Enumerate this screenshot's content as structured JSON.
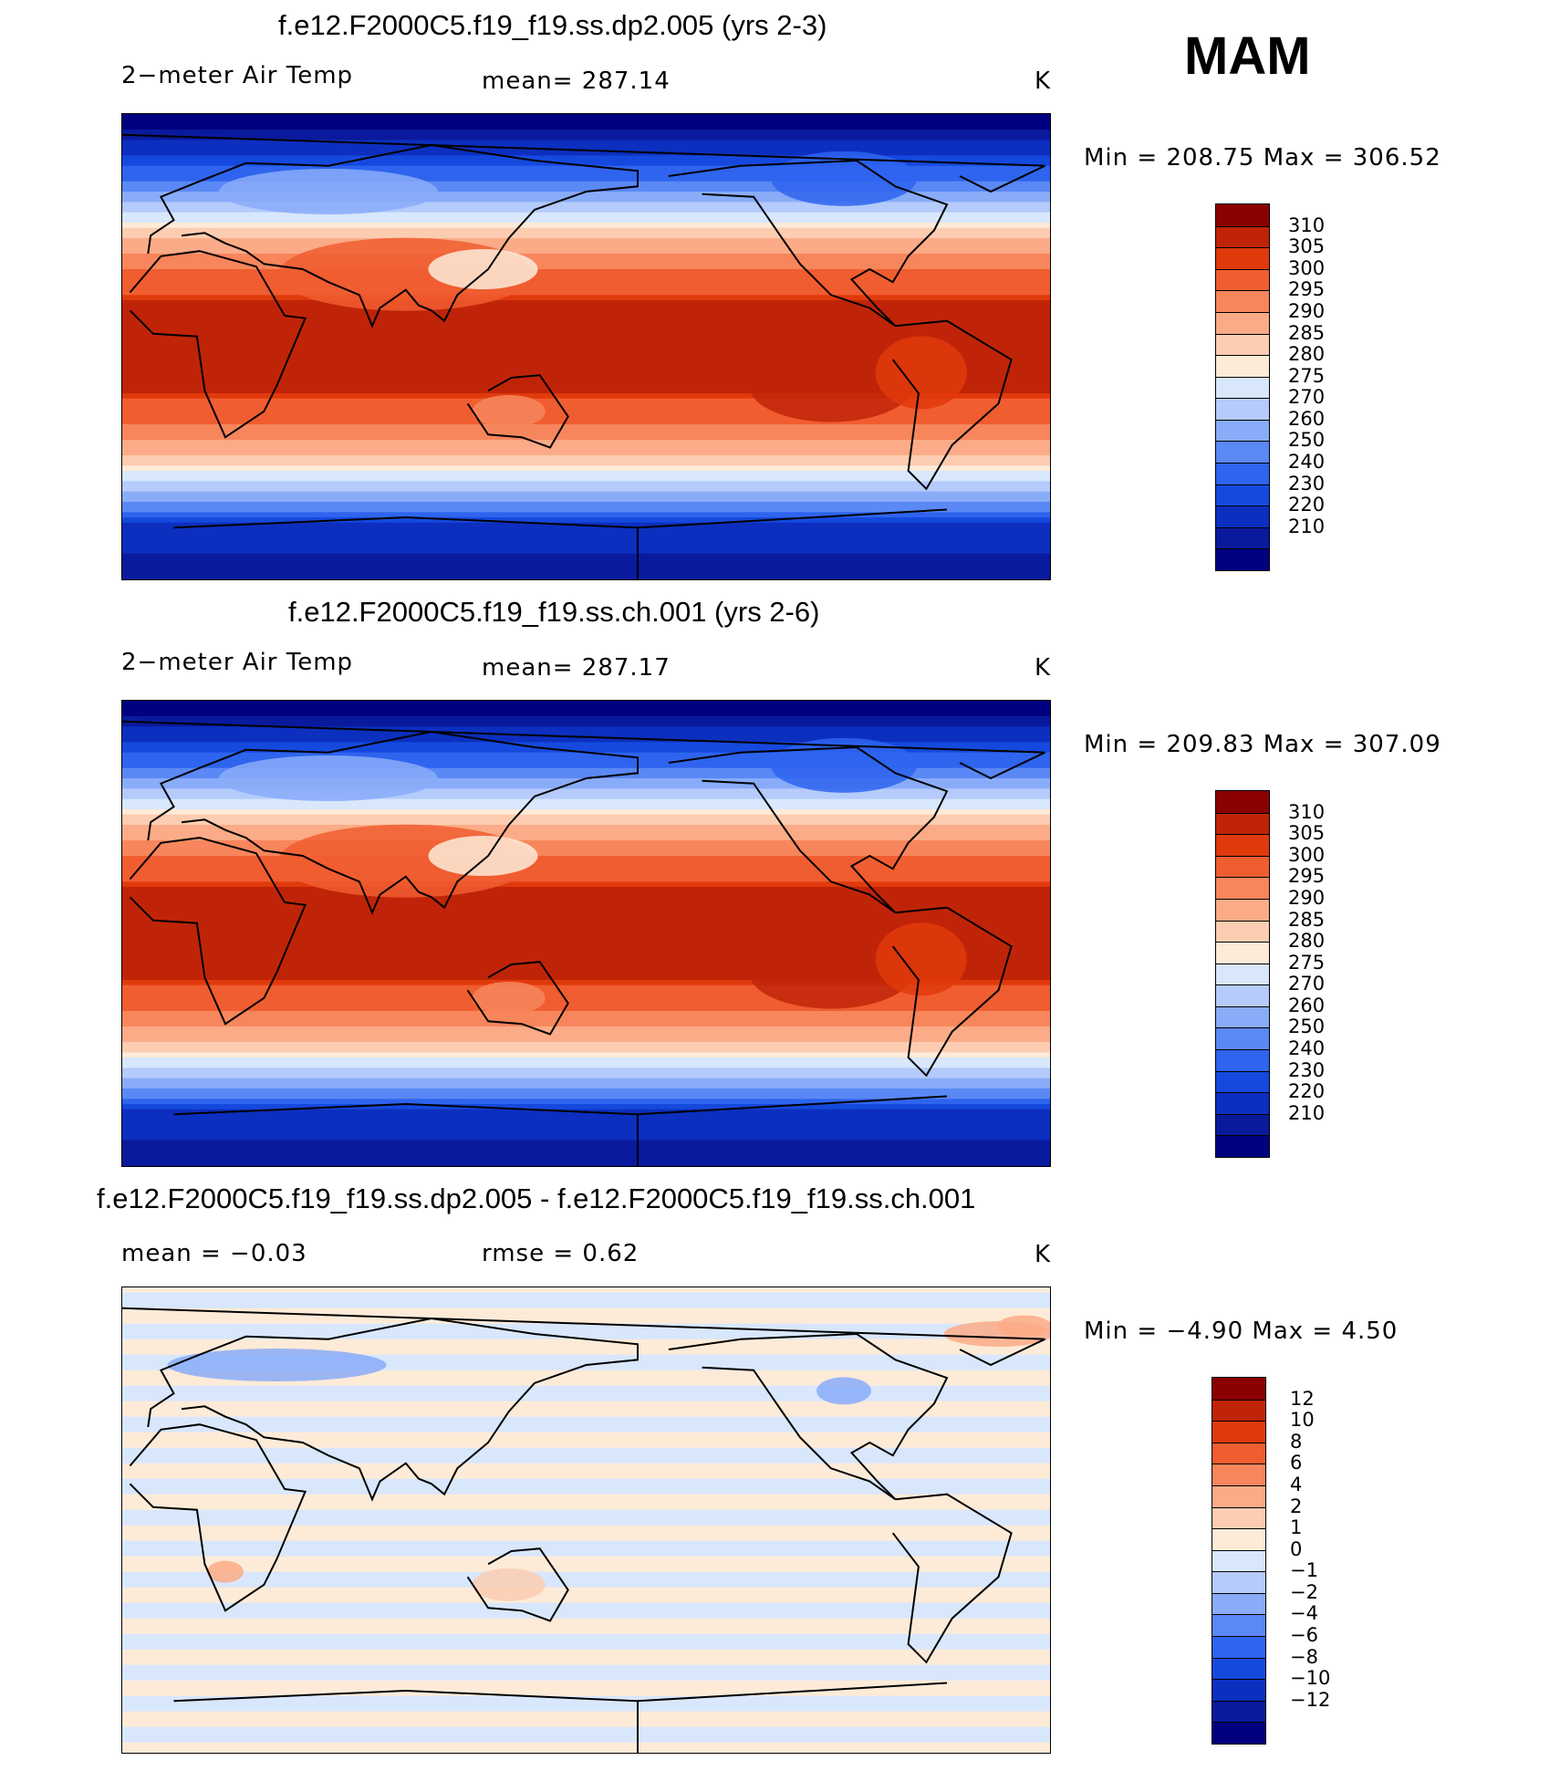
{
  "season": "MAM",
  "colors": {
    "abs": [
      "#000080",
      "#0a1a9c",
      "#0c2fbf",
      "#1549de",
      "#2e64ee",
      "#5a88f5",
      "#89acf9",
      "#b4cbfb",
      "#d8e7fc",
      "#fdebd8",
      "#fccdb1",
      "#fbab87",
      "#f7865c",
      "#f05d30",
      "#e03a0c",
      "#c02408",
      "#8b0000"
    ],
    "diff": [
      "#000080",
      "#0a1a9c",
      "#0c2fbf",
      "#1549de",
      "#2e64ee",
      "#5a88f5",
      "#89acf9",
      "#b4cbfb",
      "#d8e7fc",
      "#fdebd8",
      "#fccdb1",
      "#fbab87",
      "#f7865c",
      "#f05d30",
      "#e03a0c",
      "#c02408",
      "#8b0000"
    ]
  },
  "panels": [
    {
      "title": "f.e12.F2000C5.f19_f19.ss.dp2.005 (yrs 2-3)",
      "left": "2−meter Air Temp",
      "center": "mean=  287.14",
      "units": "K",
      "minmax": "Min  =  208.75  Max  =  306.52",
      "field": "abs",
      "labels": [
        "310",
        "305",
        "300",
        "295",
        "290",
        "285",
        "280",
        "275",
        "270",
        "260",
        "250",
        "240",
        "230",
        "220",
        "210"
      ]
    },
    {
      "title": "f.e12.F2000C5.f19_f19.ss.ch.001 (yrs 2-6)",
      "left": "2−meter Air Temp",
      "center": "mean=  287.17",
      "units": "K",
      "minmax": "Min  =  209.83  Max  =  307.09",
      "field": "abs",
      "labels": [
        "310",
        "305",
        "300",
        "295",
        "290",
        "285",
        "280",
        "275",
        "270",
        "260",
        "250",
        "240",
        "230",
        "220",
        "210"
      ]
    },
    {
      "title": "f.e12.F2000C5.f19_f19.ss.dp2.005 - f.e12.F2000C5.f19_f19.ss.ch.001",
      "left": "mean =   −0.03",
      "center": "rmse =     0.62",
      "units": "K",
      "minmax": "Min  =    −4.90  Max  =     4.50",
      "field": "diff",
      "labels": [
        "12",
        "10",
        "8",
        "6",
        "4",
        "2",
        "1",
        "0",
        "−1",
        "−2",
        "−4",
        "−6",
        "−8",
        "−10",
        "−12"
      ]
    }
  ]
}
